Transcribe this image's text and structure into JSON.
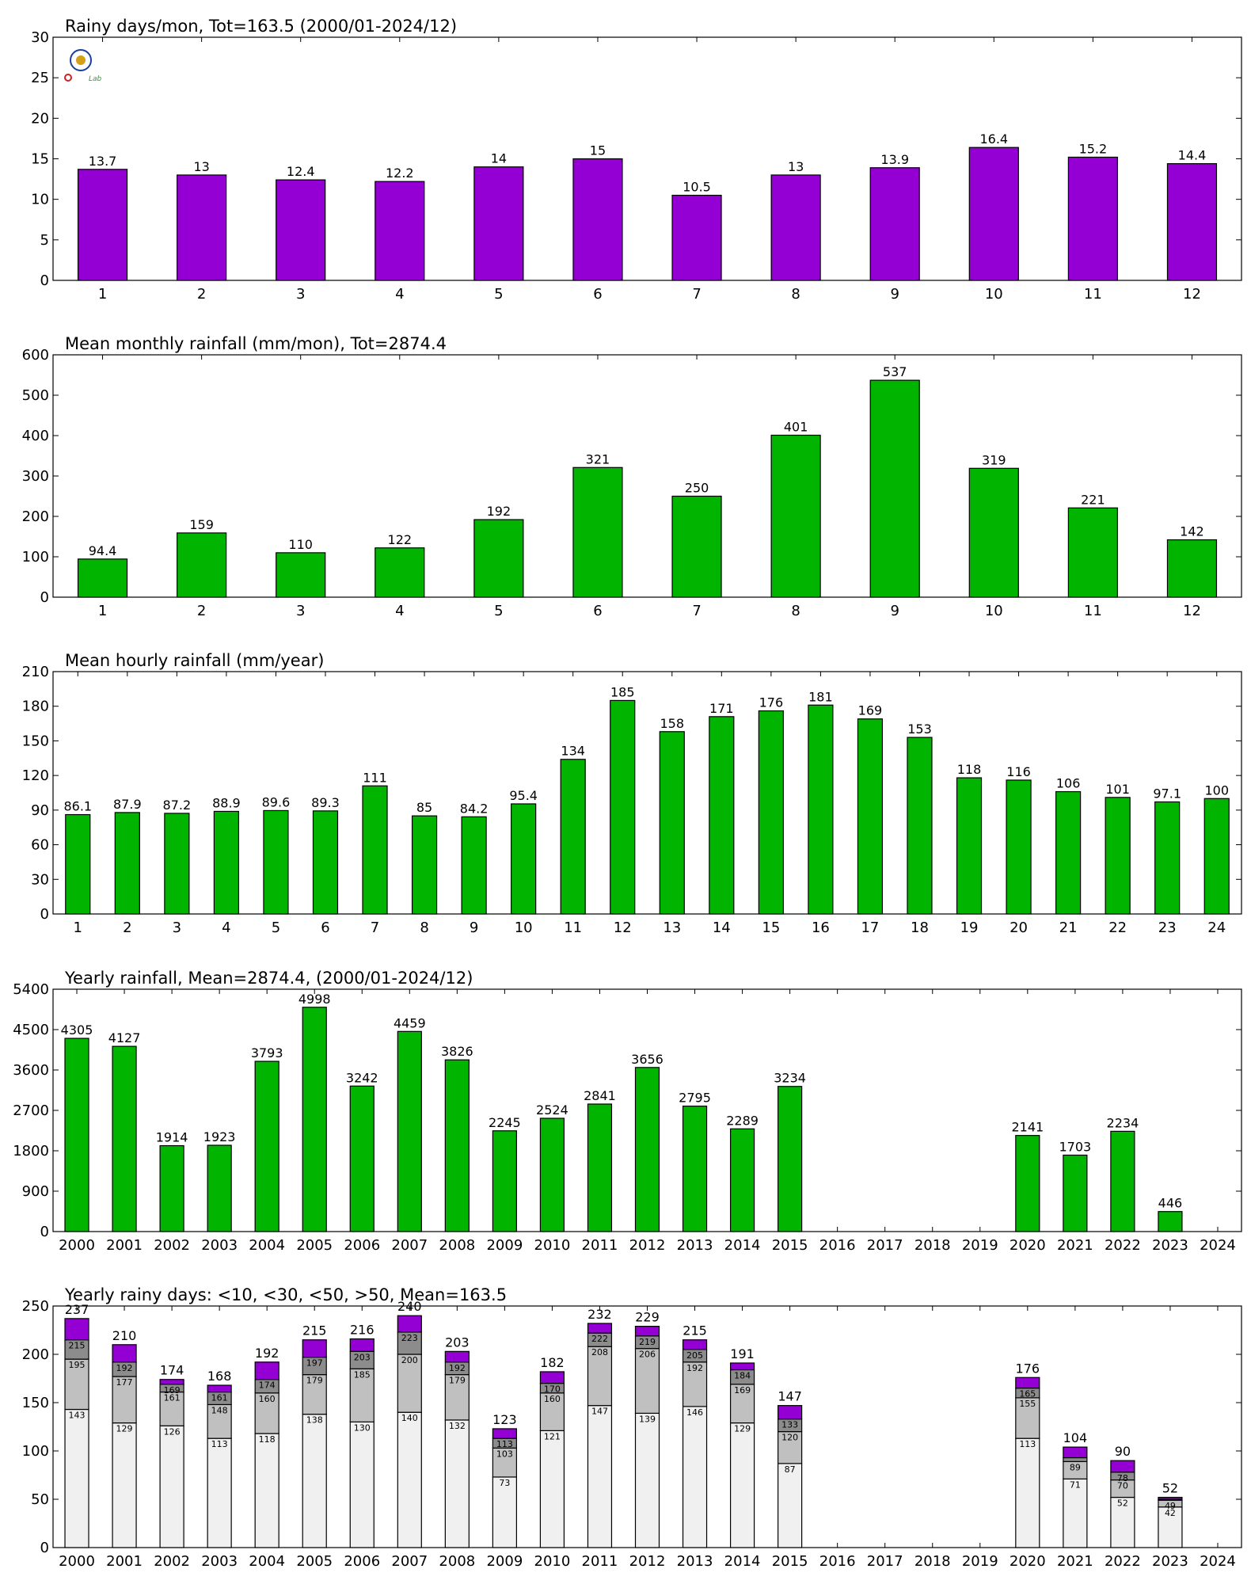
{
  "logo": {
    "text": "Lab",
    "colors": [
      "#1a3fa0",
      "#d4a017",
      "#2aa02a",
      "#d02020"
    ]
  },
  "chart_data": [
    {
      "type": "bar",
      "title": "Rainy days/mon, Tot=163.5 (2000/01-2024/12)",
      "color": "#9400d3",
      "categories": [
        "1",
        "2",
        "3",
        "4",
        "5",
        "6",
        "7",
        "8",
        "9",
        "10",
        "11",
        "12"
      ],
      "values": [
        13.7,
        13,
        12.4,
        12.2,
        14,
        15,
        10.5,
        13,
        13.9,
        16.4,
        15.2,
        14.4
      ],
      "labels": [
        "13.7",
        "13",
        "12.4",
        "12.2",
        "14",
        "15",
        "10.5",
        "13",
        "13.9",
        "16.4",
        "15.2",
        "14.4"
      ],
      "ylim": [
        0,
        30
      ],
      "yticks": [
        "0",
        "5",
        "10",
        "15",
        "20",
        "25",
        "30"
      ]
    },
    {
      "type": "bar",
      "title": "Mean monthly rainfall (mm/mon), Tot=2874.4",
      "color": "#00b400",
      "categories": [
        "1",
        "2",
        "3",
        "4",
        "5",
        "6",
        "7",
        "8",
        "9",
        "10",
        "11",
        "12"
      ],
      "values": [
        94.4,
        159,
        110,
        122,
        192,
        321,
        250,
        401,
        537,
        319,
        221,
        142
      ],
      "labels": [
        "94.4",
        "159",
        "110",
        "122",
        "192",
        "321",
        "250",
        "401",
        "537",
        "319",
        "221",
        "142"
      ],
      "ylim": [
        0,
        600
      ],
      "yticks": [
        "0",
        "100",
        "200",
        "300",
        "400",
        "500",
        "600"
      ]
    },
    {
      "type": "bar",
      "title": "Mean hourly rainfall (mm/year)",
      "color": "#00b400",
      "categories": [
        "1",
        "2",
        "3",
        "4",
        "5",
        "6",
        "7",
        "8",
        "9",
        "10",
        "11",
        "12",
        "13",
        "14",
        "15",
        "16",
        "17",
        "18",
        "19",
        "20",
        "21",
        "22",
        "23",
        "24"
      ],
      "values": [
        86.1,
        87.9,
        87.2,
        88.9,
        89.6,
        89.3,
        111,
        85,
        84.2,
        95.4,
        134,
        185,
        158,
        171,
        176,
        181,
        169,
        153,
        118,
        116,
        106,
        101,
        97.1,
        100
      ],
      "labels": [
        "86.1",
        "87.9",
        "87.2",
        "88.9",
        "89.6",
        "89.3",
        "111",
        "85",
        "84.2",
        "95.4",
        "134",
        "185",
        "158",
        "171",
        "176",
        "181",
        "169",
        "153",
        "118",
        "116",
        "106",
        "101",
        "97.1",
        "100"
      ],
      "ylim": [
        0,
        210
      ],
      "yticks": [
        "0",
        "30",
        "60",
        "90",
        "120",
        "150",
        "180",
        "210"
      ]
    },
    {
      "type": "bar",
      "title": "Yearly rainfall, Mean=2874.4, (2000/01-2024/12)",
      "color": "#00b400",
      "categories": [
        "2000",
        "2001",
        "2002",
        "2003",
        "2004",
        "2005",
        "2006",
        "2007",
        "2008",
        "2009",
        "2010",
        "2011",
        "2012",
        "2013",
        "2014",
        "2015",
        "2016",
        "2017",
        "2018",
        "2019",
        "2020",
        "2021",
        "2022",
        "2023",
        "2024"
      ],
      "values": [
        4305,
        4127,
        1914,
        1923,
        3793,
        4998,
        3242,
        4459,
        3826,
        2245,
        2524,
        2841,
        3656,
        2795,
        2289,
        3234,
        null,
        null,
        null,
        null,
        2141,
        1703,
        2234,
        446,
        null
      ],
      "labels": [
        "4305",
        "4127",
        "1914",
        "1923",
        "3793",
        "4998",
        "3242",
        "4459",
        "3826",
        "2245",
        "2524",
        "2841",
        "3656",
        "2795",
        "2289",
        "3234",
        "",
        "",
        "",
        "",
        "2141",
        "1703",
        "2234",
        "446",
        ""
      ],
      "ylim": [
        0,
        5400
      ],
      "yticks": [
        "0",
        "900",
        "1800",
        "2700",
        "3600",
        "4500",
        "5400"
      ]
    },
    {
      "type": "stacked-bar",
      "title": "Yearly rainy days: <10, <30, <50, >50, Mean=163.5",
      "colors": [
        "#f0f0f0",
        "#c0c0c0",
        "#8c8c8c",
        "#9400d3"
      ],
      "categories": [
        "2000",
        "2001",
        "2002",
        "2003",
        "2004",
        "2005",
        "2006",
        "2007",
        "2008",
        "2009",
        "2010",
        "2011",
        "2012",
        "2013",
        "2014",
        "2015",
        "2016",
        "2017",
        "2018",
        "2019",
        "2020",
        "2021",
        "2022",
        "2023",
        "2024"
      ],
      "cumulative": [
        [
          143,
          195,
          215,
          237
        ],
        [
          129,
          177,
          192,
          210
        ],
        [
          126,
          161,
          169,
          174
        ],
        [
          113,
          148,
          161,
          168
        ],
        [
          118,
          160,
          174,
          192
        ],
        [
          138,
          179,
          197,
          215
        ],
        [
          130,
          185,
          203,
          216
        ],
        [
          140,
          200,
          223,
          240
        ],
        [
          132,
          179,
          192,
          203
        ],
        [
          73,
          103,
          113,
          123
        ],
        [
          121,
          160,
          170,
          182
        ],
        [
          147,
          208,
          222,
          232
        ],
        [
          139,
          206,
          219,
          229
        ],
        [
          146,
          192,
          205,
          215
        ],
        [
          129,
          169,
          184,
          191
        ],
        [
          87,
          120,
          133,
          147
        ],
        null,
        null,
        null,
        null,
        [
          113,
          155,
          165,
          176
        ],
        [
          71,
          89,
          93,
          104
        ],
        [
          52,
          70,
          78,
          90
        ],
        [
          42,
          49,
          50,
          52
        ],
        null
      ],
      "labels": [
        [
          "143",
          "195",
          "215",
          "237"
        ],
        [
          "129",
          "177",
          "192",
          "210"
        ],
        [
          "126",
          "161",
          "169",
          "174"
        ],
        [
          "113",
          "148",
          "161",
          "168"
        ],
        [
          "118",
          "160",
          "174",
          "192"
        ],
        [
          "138",
          "179",
          "197",
          "215"
        ],
        [
          "130",
          "185",
          "203",
          "216"
        ],
        [
          "140",
          "200",
          "223",
          "240"
        ],
        [
          "132",
          "179",
          "192",
          "203"
        ],
        [
          "73",
          "103",
          "113",
          "123"
        ],
        [
          "121",
          "160",
          "170",
          "182"
        ],
        [
          "147",
          "208",
          "222",
          "232"
        ],
        [
          "139",
          "206",
          "219",
          "229"
        ],
        [
          "146",
          "192",
          "205",
          "215"
        ],
        [
          "129",
          "169",
          "184",
          "191"
        ],
        [
          "87",
          "120",
          "133",
          "147"
        ],
        null,
        null,
        null,
        null,
        [
          "113",
          "155",
          "165",
          "176"
        ],
        [
          "71",
          "89",
          "",
          "104"
        ],
        [
          "52",
          "70",
          "78",
          "90"
        ],
        [
          "42",
          "49",
          "",
          "52"
        ],
        null
      ],
      "ylim": [
        0,
        250
      ],
      "yticks": [
        "0",
        "50",
        "100",
        "150",
        "200",
        "250"
      ]
    }
  ]
}
